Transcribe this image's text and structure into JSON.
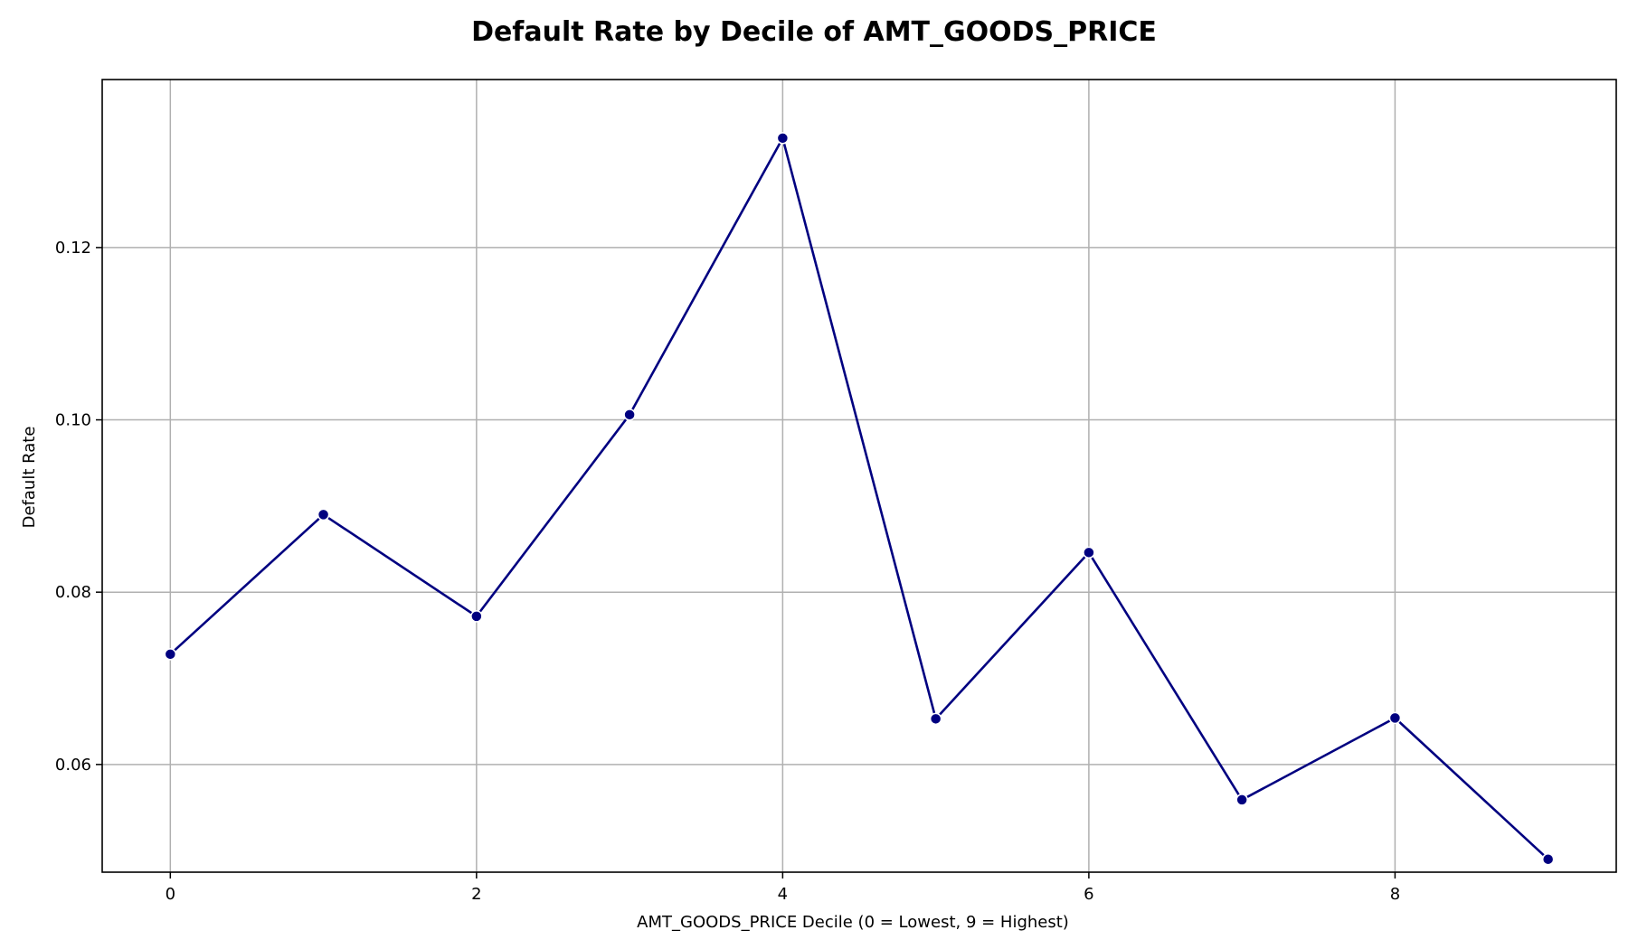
{
  "chart_data": {
    "type": "line",
    "title": "Default Rate by Decile of AMT_GOODS_PRICE",
    "xlabel": "AMT_GOODS_PRICE Decile (0 = Lowest, 9 = Highest)",
    "ylabel": "Default Rate",
    "x": [
      0,
      1,
      2,
      3,
      4,
      5,
      6,
      7,
      8,
      9
    ],
    "series": [
      {
        "values": [
          0.0728,
          0.089,
          0.0772,
          0.1006,
          0.1327,
          0.0653,
          0.0846,
          0.0559,
          0.0654,
          0.049
        ],
        "color": "#000080"
      }
    ],
    "xlim": [
      -0.445,
      9.445
    ],
    "ylim": [
      0.0475,
      0.1395
    ],
    "xticks": [
      0,
      2,
      4,
      6,
      8
    ],
    "xtick_labels": [
      "0",
      "2",
      "4",
      "6",
      "8"
    ],
    "yticks": [
      0.06,
      0.08,
      0.1,
      0.12
    ],
    "ytick_labels": [
      "0.06",
      "0.08",
      "0.10",
      "0.12"
    ],
    "grid": true,
    "markers": true
  }
}
